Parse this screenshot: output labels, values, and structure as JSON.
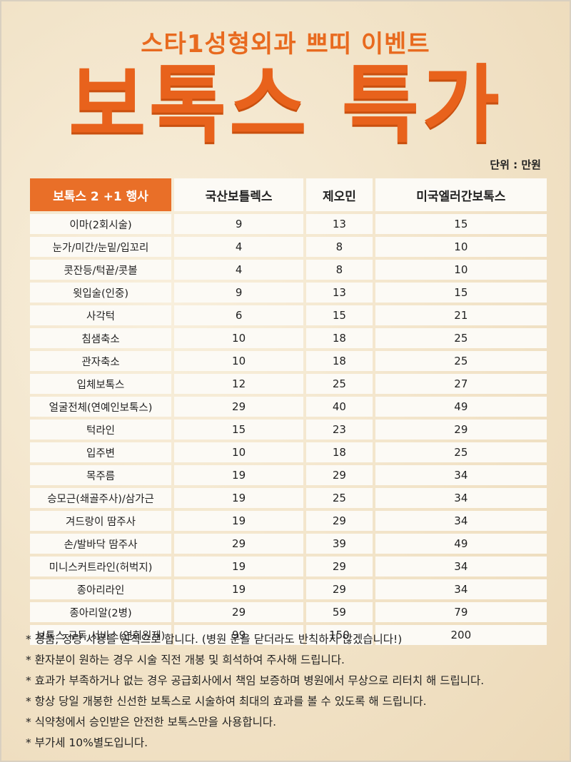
{
  "header": {
    "subtitle": "스타1성형외과 쁘띠 이벤트",
    "title": "보톡스 특가",
    "unit": "단위 : 만원"
  },
  "table": {
    "columns": [
      "보톡스 2 +1 행사",
      "국산보틀렉스",
      "제오민",
      "미국엘러간보톡스"
    ],
    "rows": [
      [
        "이마(2회시술)",
        "9",
        "13",
        "15"
      ],
      [
        "눈가/미간/눈밑/입꼬리",
        "4",
        "8",
        "10"
      ],
      [
        "콧잔등/턱끝/콧볼",
        "4",
        "8",
        "10"
      ],
      [
        "윗입술(인중)",
        "9",
        "13",
        "15"
      ],
      [
        "사각턱",
        "6",
        "15",
        "21"
      ],
      [
        "침샘축소",
        "10",
        "18",
        "25"
      ],
      [
        "관자축소",
        "10",
        "18",
        "25"
      ],
      [
        "입체보톡스",
        "12",
        "25",
        "27"
      ],
      [
        "얼굴전체(연예인보톡스)",
        "29",
        "40",
        "49"
      ],
      [
        "턱라인",
        "15",
        "23",
        "29"
      ],
      [
        "입주변",
        "10",
        "18",
        "25"
      ],
      [
        "목주름",
        "19",
        "29",
        "34"
      ],
      [
        "승모근(쇄골주사)/삼가근",
        "19",
        "25",
        "34"
      ],
      [
        "겨드랑이 땀주사",
        "19",
        "29",
        "34"
      ],
      [
        "손/발바닥 땀주사",
        "29",
        "39",
        "49"
      ],
      [
        "미니스커트라인(허벅지)",
        "19",
        "29",
        "34"
      ],
      [
        "종아리라인",
        "19",
        "29",
        "34"
      ],
      [
        "종아리알(2병)",
        "29",
        "59",
        "79"
      ],
      [
        "보톡스 구독 서비스(연회원제)",
        "99",
        "150",
        "200"
      ]
    ]
  },
  "notes": [
    "* 정품, 정량 사용을 원칙으로 합니다. (병원 문을 닫더라도 반칙하지 않겠습니다!)",
    "* 환자분이 원하는 경우 시술 직전 개봉 및 희석하여 주사해 드립니다.",
    "* 효과가 부족하거나 없는 경우 공급회사에서 책임 보증하며 병원에서 무상으로 리터치 해 드립니다.",
    "* 항상 당일 개봉한 신선한 보톡스로 시술하여 최대의 효과를 볼 수 있도록 해 드립니다.",
    "* 식약청에서 승인받은 안전한 보톡스만을 사용합니다.",
    "* 부가세 10%별도입니다."
  ],
  "colors": {
    "accent": "#e8621c",
    "header_cell": "#e96f28",
    "background": "#f1e2c6"
  }
}
